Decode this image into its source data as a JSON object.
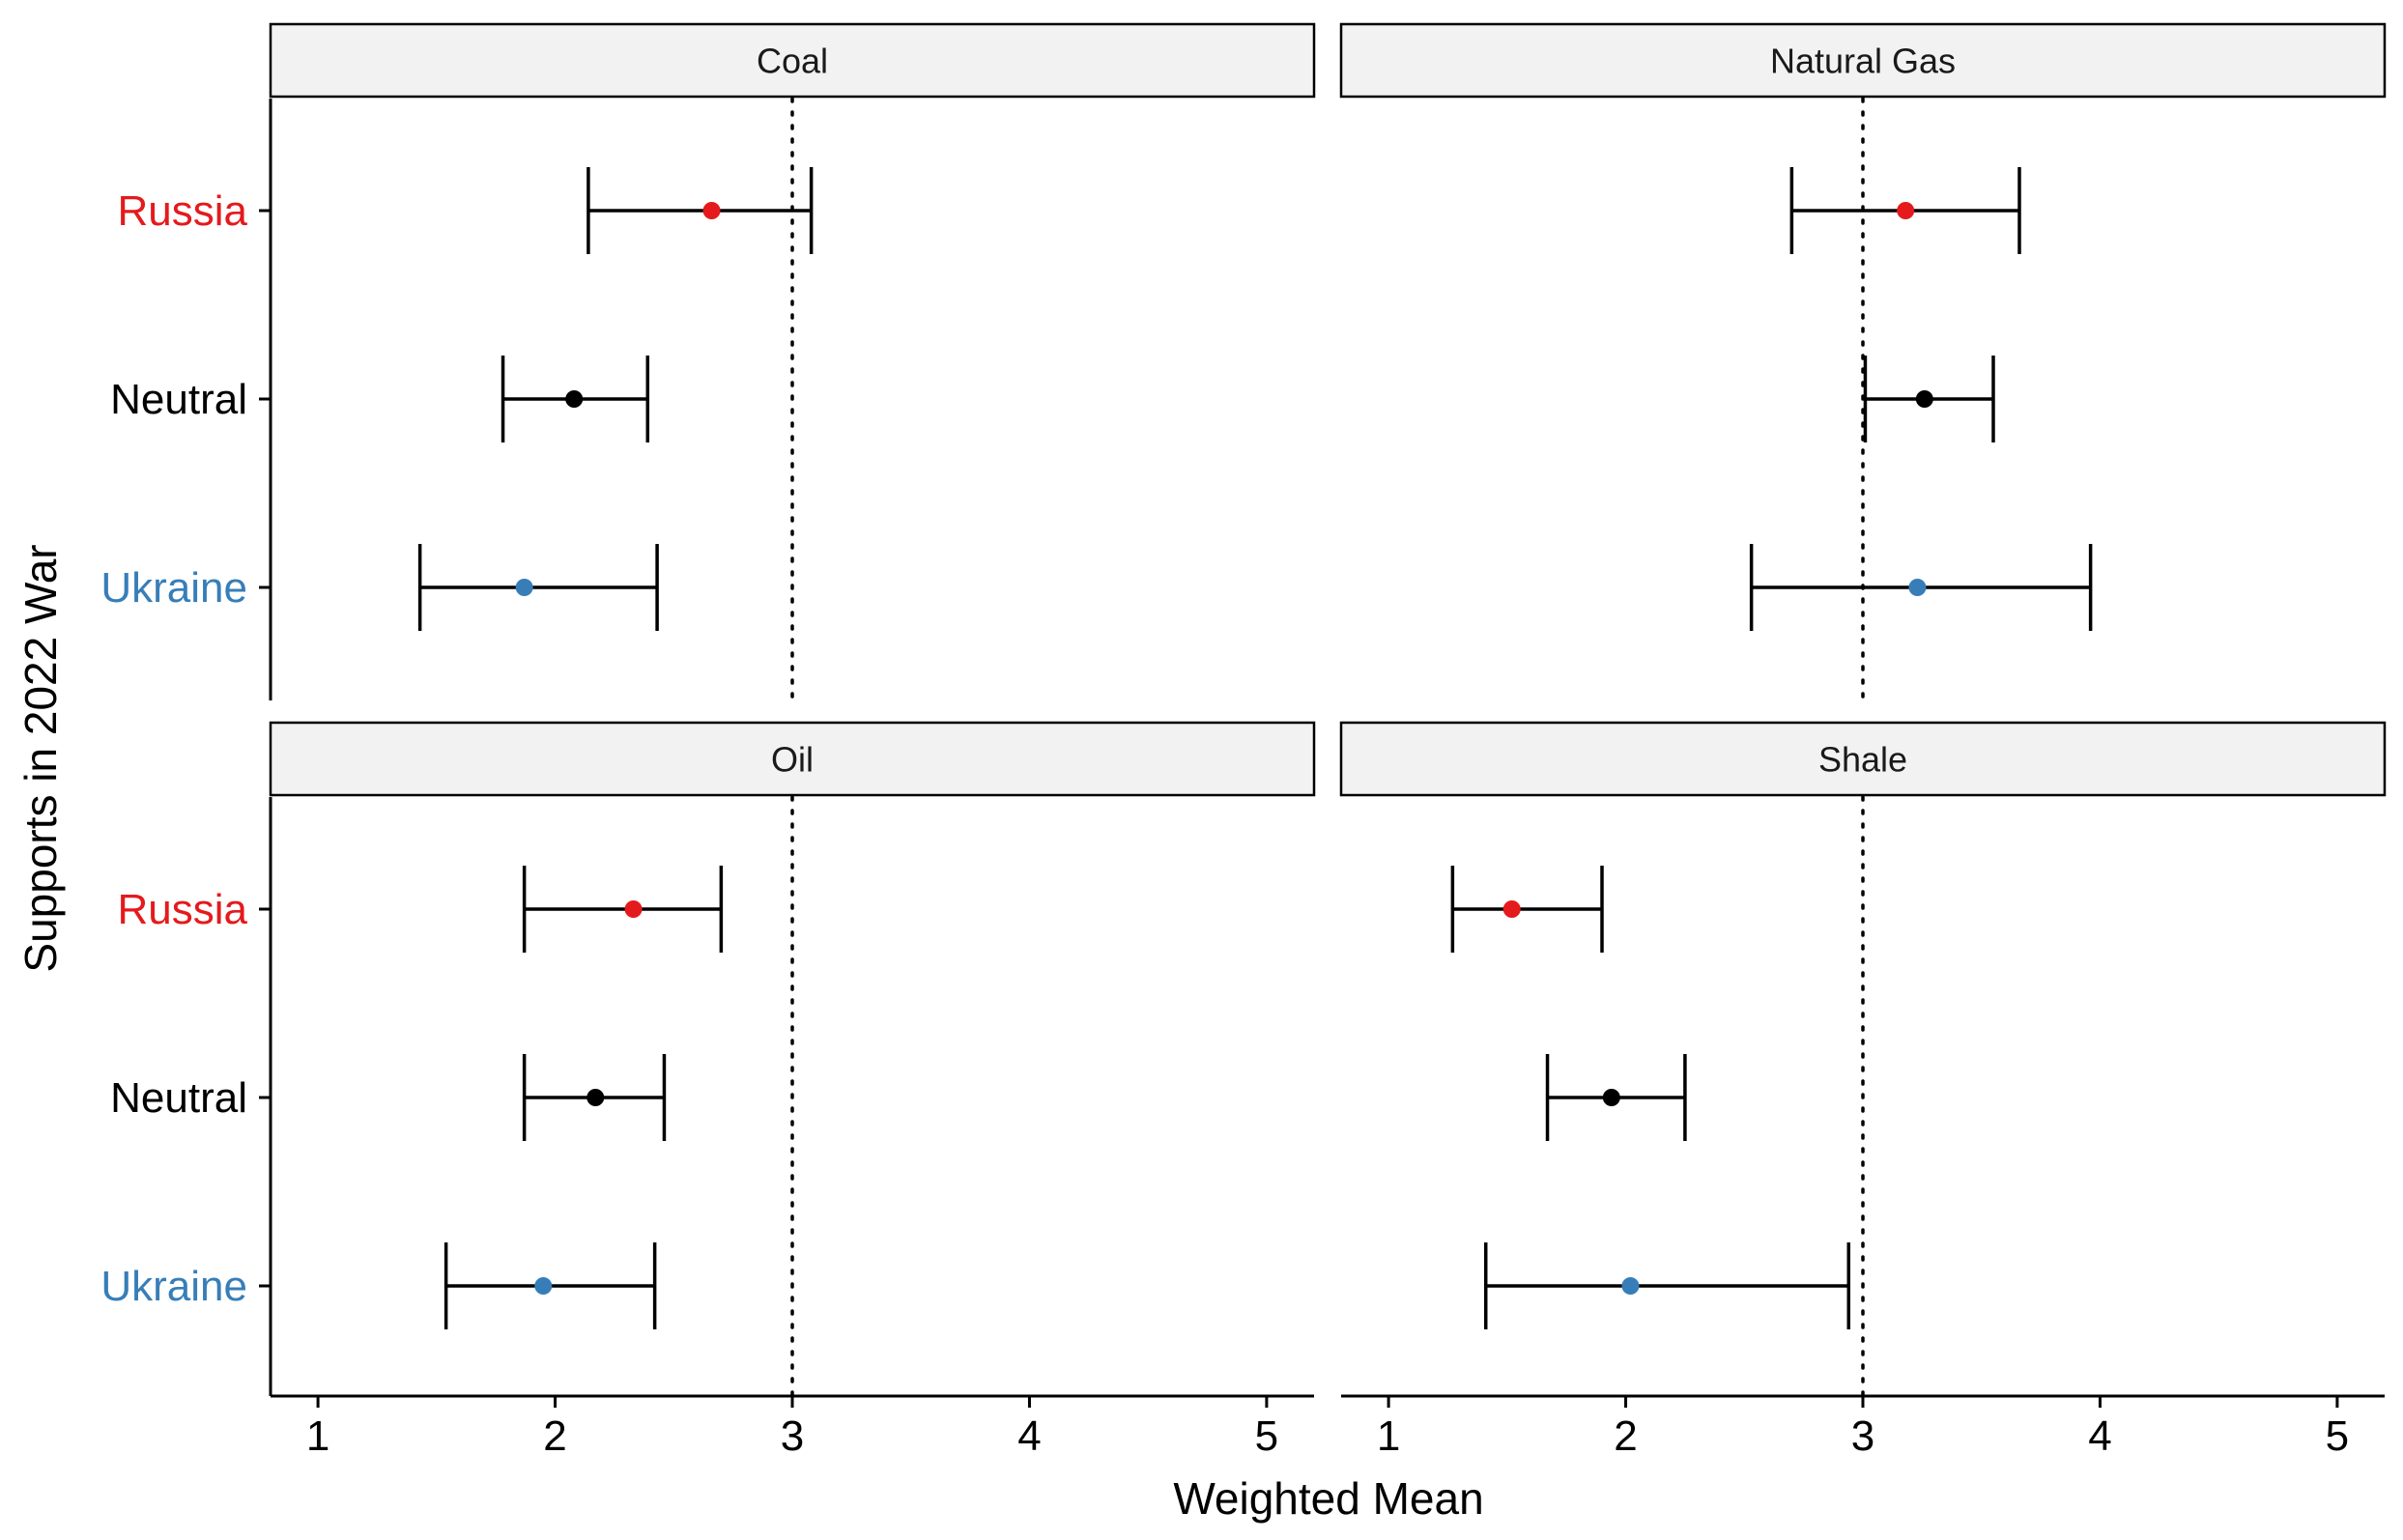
{
  "chart_data": {
    "type": "scatter",
    "subtype": "dot-and-whisker, faceted 2x2",
    "xlabel": "Weighted Mean",
    "ylabel": "Supports in 2022 War",
    "xlim": [
      0.8,
      5.2
    ],
    "xticks": [
      "1",
      "2",
      "3",
      "4",
      "5"
    ],
    "reference_line": {
      "x": 3,
      "style": "dotted"
    },
    "grid": false,
    "legend": "none",
    "categories": [
      "Russia",
      "Neutral",
      "Ukraine"
    ],
    "category_colors": {
      "Russia": "#e41a1c",
      "Neutral": "#000000",
      "Ukraine": "#377eb8"
    },
    "panels": [
      {
        "title": "Coal",
        "points": [
          {
            "group": "Russia",
            "mean": 2.66,
            "lower": 2.14,
            "upper": 3.08
          },
          {
            "group": "Neutral",
            "mean": 2.08,
            "lower": 1.78,
            "upper": 2.39
          },
          {
            "group": "Ukraine",
            "mean": 1.87,
            "lower": 1.43,
            "upper": 2.43
          }
        ]
      },
      {
        "title": "Natural Gas",
        "points": [
          {
            "group": "Russia",
            "mean": 3.18,
            "lower": 2.7,
            "upper": 3.66
          },
          {
            "group": "Neutral",
            "mean": 3.26,
            "lower": 3.01,
            "upper": 3.55
          },
          {
            "group": "Ukraine",
            "mean": 3.23,
            "lower": 2.53,
            "upper": 3.96
          }
        ]
      },
      {
        "title": "Oil",
        "points": [
          {
            "group": "Russia",
            "mean": 2.33,
            "lower": 1.87,
            "upper": 2.7
          },
          {
            "group": "Neutral",
            "mean": 2.17,
            "lower": 1.87,
            "upper": 2.46
          },
          {
            "group": "Ukraine",
            "mean": 1.95,
            "lower": 1.54,
            "upper": 2.42
          }
        ]
      },
      {
        "title": "Shale",
        "points": [
          {
            "group": "Russia",
            "mean": 1.52,
            "lower": 1.27,
            "upper": 1.9
          },
          {
            "group": "Neutral",
            "mean": 1.94,
            "lower": 1.67,
            "upper": 2.25
          },
          {
            "group": "Ukraine",
            "mean": 2.02,
            "lower": 1.41,
            "upper": 2.94
          }
        ]
      }
    ]
  }
}
